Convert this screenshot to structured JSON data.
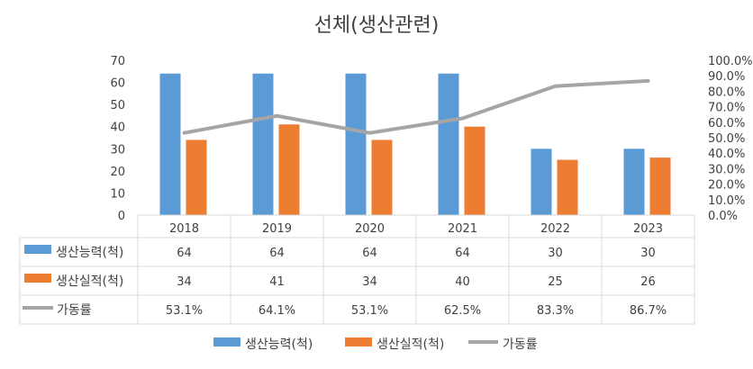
{
  "chart_data": {
    "type": "bar",
    "title": "선체(생산관련)",
    "categories": [
      "2018",
      "2019",
      "2020",
      "2021",
      "2022",
      "2023"
    ],
    "series": [
      {
        "name": "생산능력(척)",
        "kind": "bar",
        "axis": "left",
        "color": "#5B9BD5",
        "values": [
          64,
          64,
          64,
          64,
          30,
          30
        ]
      },
      {
        "name": "생산실적(척)",
        "kind": "bar",
        "axis": "left",
        "color": "#ED7D31",
        "values": [
          34,
          41,
          34,
          40,
          25,
          26
        ]
      },
      {
        "name": "가동률",
        "kind": "line",
        "axis": "right",
        "color": "#A5A5A5",
        "values": [
          53.1,
          64.1,
          53.1,
          62.5,
          83.3,
          86.7
        ]
      }
    ],
    "table_values": [
      [
        "64",
        "64",
        "64",
        "64",
        "30",
        "30"
      ],
      [
        "34",
        "41",
        "34",
        "40",
        "25",
        "26"
      ],
      [
        "53.1%",
        "64.1%",
        "53.1%",
        "62.5%",
        "83.3%",
        "86.7%"
      ]
    ],
    "y_left": {
      "min": 0,
      "max": 70,
      "ticks": [
        "0",
        "10",
        "20",
        "30",
        "40",
        "50",
        "60",
        "70"
      ]
    },
    "y_right": {
      "min": 0,
      "max": 100,
      "ticks": [
        "0.0%",
        "10.0%",
        "20.0%",
        "30.0%",
        "40.0%",
        "50.0%",
        "60.0%",
        "70.0%",
        "80.0%",
        "90.0%",
        "100.0%"
      ]
    },
    "legend_position": "bottom",
    "data_table": true
  }
}
